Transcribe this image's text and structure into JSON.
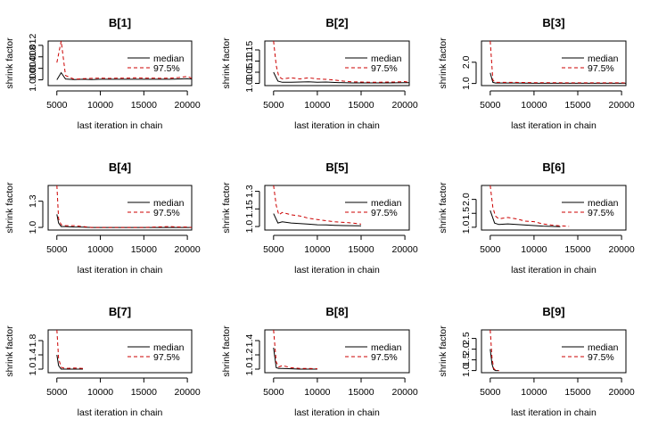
{
  "colors": {
    "median": "#000000",
    "q975": "#CC0000",
    "axis": "#000000"
  },
  "chart_data": [
    {
      "type": "line",
      "title": "B[1]",
      "xlabel": "last iteration in chain",
      "ylabel": "shrink factor",
      "xlim": [
        4000,
        20500
      ],
      "ylim": [
        0.998,
        1.0135
      ],
      "xticks": [
        {
          "v": 5000,
          "label": "5000"
        },
        {
          "v": 10000,
          "label": "10000"
        },
        {
          "v": 15000,
          "label": "15000"
        },
        {
          "v": 20000,
          "label": "20000"
        }
      ],
      "yticks": [
        {
          "v": 1.0,
          "label": "1.000"
        },
        {
          "v": 1.004,
          "label": "1.004"
        },
        {
          "v": 1.008,
          "label": "1.008"
        },
        {
          "v": 1.012,
          "label": "1.012"
        }
      ],
      "legend": [
        "median",
        "97.5%"
      ],
      "series": [
        {
          "name": "median",
          "x": [
            5000,
            5500,
            6000,
            7000,
            8000,
            9000,
            10000,
            12000,
            14000,
            16000,
            18000,
            19000,
            20000,
            20500
          ],
          "y": [
            1.0,
            1.0025,
            1.0003,
            1.0001,
            1.0002,
            1.0001,
            1.0002,
            1.0002,
            1.0002,
            1.0002,
            1.0002,
            1.0003,
            1.0004,
            1.0003
          ]
        },
        {
          "name": "97.5%",
          "x": [
            5000,
            5500,
            6000,
            7000,
            8000,
            9000,
            10000,
            11000,
            12000,
            13000,
            14000,
            15000,
            16000,
            17000,
            18000,
            19000,
            20000,
            20500
          ],
          "y": [
            1.006,
            1.0135,
            1.0015,
            1.0002,
            1.0004,
            1.0005,
            1.0006,
            1.0005,
            1.0006,
            1.0006,
            1.0007,
            1.0006,
            1.0006,
            1.0005,
            1.0006,
            1.0008,
            1.0012,
            1.0006
          ]
        }
      ]
    },
    {
      "type": "line",
      "title": "B[2]",
      "xlabel": "last iteration in chain",
      "ylabel": "shrink factor",
      "xlim": [
        4000,
        20500
      ],
      "ylim": [
        0.99,
        1.19
      ],
      "xticks": [
        {
          "v": 5000,
          "label": "5000"
        },
        {
          "v": 10000,
          "label": "10000"
        },
        {
          "v": 15000,
          "label": "15000"
        },
        {
          "v": 20000,
          "label": "20000"
        }
      ],
      "yticks": [
        {
          "v": 1.0,
          "label": "1.00"
        },
        {
          "v": 1.05,
          "label": "1.05"
        },
        {
          "v": 1.1,
          "label": "1.10"
        },
        {
          "v": 1.15,
          "label": "1.15"
        }
      ],
      "legend": [
        "median",
        "97.5%"
      ],
      "series": [
        {
          "name": "median",
          "x": [
            5000,
            5500,
            6000,
            7000,
            8000,
            9000,
            10000,
            11000,
            12000,
            13000,
            14000,
            16000,
            18000,
            20000,
            20500
          ],
          "y": [
            1.05,
            1.01,
            1.005,
            1.005,
            1.006,
            1.007,
            1.005,
            1.006,
            1.004,
            1.003,
            1.002,
            1.002,
            1.002,
            1.003,
            1.003
          ]
        },
        {
          "name": "97.5%",
          "x": [
            5000,
            5300,
            5600,
            6000,
            7000,
            8000,
            9000,
            10000,
            11000,
            12000,
            13000,
            14000,
            15000,
            16000,
            17000,
            18000,
            19000,
            20000,
            20500
          ],
          "y": [
            1.19,
            1.08,
            1.03,
            1.02,
            1.025,
            1.02,
            1.025,
            1.02,
            1.018,
            1.015,
            1.01,
            1.007,
            1.006,
            1.005,
            1.005,
            1.006,
            1.006,
            1.008,
            1.004
          ]
        }
      ]
    },
    {
      "type": "line",
      "title": "B[3]",
      "xlabel": "last iteration in chain",
      "ylabel": "shrink factor",
      "xlim": [
        4000,
        20500
      ],
      "ylim": [
        0.9,
        3.0
      ],
      "xticks": [
        {
          "v": 5000,
          "label": "5000"
        },
        {
          "v": 10000,
          "label": "10000"
        },
        {
          "v": 15000,
          "label": "15000"
        },
        {
          "v": 20000,
          "label": "20000"
        }
      ],
      "yticks": [
        {
          "v": 1.0,
          "label": "1.0"
        },
        {
          "v": 2.0,
          "label": "2.0"
        }
      ],
      "legend": [
        "median",
        "97.5%"
      ],
      "series": [
        {
          "name": "median",
          "x": [
            5000,
            5300,
            5600,
            6000,
            8000,
            10000,
            12000,
            14000,
            16000,
            18000,
            20000,
            20500
          ],
          "y": [
            1.5,
            1.05,
            1.02,
            1.02,
            1.02,
            1.01,
            1.01,
            1.01,
            1.01,
            1.01,
            1.01,
            1.01
          ]
        },
        {
          "name": "97.5%",
          "x": [
            5000,
            5300,
            5600,
            6000,
            8000,
            10000,
            12000,
            14000,
            16000,
            18000,
            20000,
            20500
          ],
          "y": [
            3.0,
            1.15,
            1.05,
            1.05,
            1.05,
            1.04,
            1.04,
            1.03,
            1.03,
            1.03,
            1.03,
            1.02
          ]
        }
      ]
    },
    {
      "type": "line",
      "title": "B[4]",
      "xlabel": "last iteration in chain",
      "ylabel": "shrink factor",
      "xlim": [
        4000,
        20500
      ],
      "ylim": [
        0.97,
        1.48
      ],
      "xticks": [
        {
          "v": 5000,
          "label": "5000"
        },
        {
          "v": 10000,
          "label": "10000"
        },
        {
          "v": 15000,
          "label": "15000"
        },
        {
          "v": 20000,
          "label": "20000"
        }
      ],
      "yticks": [
        {
          "v": 1.0,
          "label": "1.0"
        },
        {
          "v": 1.3,
          "label": "1.3"
        }
      ],
      "legend": [
        "median",
        "97.5%"
      ],
      "series": [
        {
          "name": "median",
          "x": [
            5000,
            5200,
            5500,
            6000,
            7000,
            8000,
            9000,
            10000,
            12000,
            15000,
            18000,
            20000,
            20500
          ],
          "y": [
            1.15,
            1.05,
            1.01,
            1.01,
            1.005,
            1.003,
            1.0,
            1.0,
            1.0,
            1.0,
            1.0,
            1.0,
            1.0
          ]
        },
        {
          "name": "97.5%",
          "x": [
            5000,
            5200,
            5500,
            6000,
            7000,
            8000,
            9000,
            12000,
            15000,
            18000,
            19000,
            20000,
            20500
          ],
          "y": [
            1.48,
            1.1,
            1.03,
            1.02,
            1.02,
            1.01,
            1.0,
            1.0,
            1.0,
            1.01,
            1.005,
            1.005,
            1.0
          ]
        }
      ]
    },
    {
      "type": "line",
      "title": "B[5]",
      "xlabel": "last iteration in chain",
      "ylabel": "shrink factor",
      "xlim": [
        4000,
        20500
      ],
      "ylim": [
        0.97,
        1.35
      ],
      "xticks": [
        {
          "v": 5000,
          "label": "5000"
        },
        {
          "v": 10000,
          "label": "10000"
        },
        {
          "v": 15000,
          "label": "15000"
        },
        {
          "v": 20000,
          "label": "20000"
        }
      ],
      "yticks": [
        {
          "v": 1.0,
          "label": "1.0"
        },
        {
          "v": 1.15,
          "label": "1.15"
        },
        {
          "v": 1.3,
          "label": "1.3"
        }
      ],
      "legend": [
        "median",
        "97.5%"
      ],
      "series": [
        {
          "name": "median",
          "x": [
            5000,
            5500,
            6000,
            7000,
            8000,
            9000,
            10000,
            11000,
            12000,
            13000,
            14000,
            15000
          ],
          "y": [
            1.11,
            1.03,
            1.04,
            1.03,
            1.025,
            1.02,
            1.015,
            1.013,
            1.01,
            1.008,
            1.007,
            1.006
          ]
        },
        {
          "name": "97.5%",
          "x": [
            5000,
            5300,
            5600,
            6000,
            7000,
            8000,
            9000,
            10000,
            11000,
            12000,
            13000,
            14000,
            15000
          ],
          "y": [
            1.35,
            1.18,
            1.1,
            1.12,
            1.1,
            1.09,
            1.07,
            1.06,
            1.05,
            1.04,
            1.035,
            1.03,
            1.02
          ]
        }
      ]
    },
    {
      "type": "line",
      "title": "B[6]",
      "xlabel": "last iteration in chain",
      "ylabel": "shrink factor",
      "xlim": [
        4000,
        20500
      ],
      "ylim": [
        0.9,
        2.5
      ],
      "xticks": [
        {
          "v": 5000,
          "label": "5000"
        },
        {
          "v": 10000,
          "label": "10000"
        },
        {
          "v": 15000,
          "label": "15000"
        },
        {
          "v": 20000,
          "label": "20000"
        }
      ],
      "yticks": [
        {
          "v": 1.0,
          "label": "1.0"
        },
        {
          "v": 1.5,
          "label": "1.5"
        },
        {
          "v": 2.0,
          "label": "2.0"
        }
      ],
      "legend": [
        "median",
        "97.5%"
      ],
      "series": [
        {
          "name": "median",
          "x": [
            5000,
            5500,
            6000,
            7000,
            8000,
            9000,
            10000,
            11000,
            12000,
            13000
          ],
          "y": [
            1.6,
            1.15,
            1.1,
            1.12,
            1.1,
            1.08,
            1.06,
            1.04,
            1.03,
            1.02
          ]
        },
        {
          "name": "97.5%",
          "x": [
            5000,
            5300,
            5600,
            6000,
            7000,
            8000,
            9000,
            10000,
            11000,
            12000,
            13000,
            14000
          ],
          "y": [
            2.5,
            1.7,
            1.4,
            1.3,
            1.35,
            1.3,
            1.22,
            1.2,
            1.12,
            1.08,
            1.05,
            1.03
          ]
        }
      ]
    },
    {
      "type": "line",
      "title": "B[7]",
      "xlabel": "last iteration in chain",
      "ylabel": "shrink factor",
      "xlim": [
        4000,
        20500
      ],
      "ylim": [
        0.9,
        2.1
      ],
      "xticks": [
        {
          "v": 5000,
          "label": "5000"
        },
        {
          "v": 10000,
          "label": "10000"
        },
        {
          "v": 15000,
          "label": "15000"
        },
        {
          "v": 20000,
          "label": "20000"
        }
      ],
      "yticks": [
        {
          "v": 1.0,
          "label": "1.0"
        },
        {
          "v": 1.4,
          "label": "1.4"
        },
        {
          "v": 1.8,
          "label": "1.8"
        }
      ],
      "legend": [
        "median",
        "97.5%"
      ],
      "series": [
        {
          "name": "median",
          "x": [
            5000,
            5200,
            5500,
            6000,
            7000,
            8000
          ],
          "y": [
            1.4,
            1.1,
            1.0,
            1.0,
            1.0,
            1.0
          ]
        },
        {
          "name": "97.5%",
          "x": [
            5000,
            5200,
            5500,
            6000,
            7000,
            8000
          ],
          "y": [
            2.1,
            1.3,
            1.05,
            1.02,
            1.03,
            1.02
          ]
        }
      ]
    },
    {
      "type": "line",
      "title": "B[8]",
      "xlabel": "last iteration in chain",
      "ylabel": "shrink factor",
      "xlim": [
        4000,
        20500
      ],
      "ylim": [
        0.95,
        1.55
      ],
      "xticks": [
        {
          "v": 5000,
          "label": "5000"
        },
        {
          "v": 10000,
          "label": "10000"
        },
        {
          "v": 15000,
          "label": "15000"
        },
        {
          "v": 20000,
          "label": "20000"
        }
      ],
      "yticks": [
        {
          "v": 1.0,
          "label": "1.0"
        },
        {
          "v": 1.2,
          "label": "1.2"
        },
        {
          "v": 1.4,
          "label": "1.4"
        }
      ],
      "legend": [
        "median",
        "97.5%"
      ],
      "series": [
        {
          "name": "median",
          "x": [
            5000,
            5300,
            5600,
            6000,
            8000,
            10000
          ],
          "y": [
            1.3,
            1.02,
            1.01,
            1.01,
            1.0,
            1.0
          ]
        },
        {
          "name": "97.5%",
          "x": [
            5000,
            5300,
            5600,
            6000,
            7000,
            8000,
            9000,
            10000
          ],
          "y": [
            1.55,
            1.1,
            1.03,
            1.05,
            1.02,
            1.01,
            1.01,
            1.005
          ]
        }
      ]
    },
    {
      "type": "line",
      "title": "B[9]",
      "xlabel": "last iteration in chain",
      "ylabel": "shrink factor",
      "xlim": [
        4000,
        20500
      ],
      "ylim": [
        0.9,
        2.9
      ],
      "xticks": [
        {
          "v": 5000,
          "label": "5000"
        },
        {
          "v": 10000,
          "label": "10000"
        },
        {
          "v": 15000,
          "label": "15000"
        },
        {
          "v": 20000,
          "label": "20000"
        }
      ],
      "yticks": [
        {
          "v": 1.0,
          "label": "1.0"
        },
        {
          "v": 1.5,
          "label": "1.5"
        },
        {
          "v": 2.0,
          "label": "2.0"
        },
        {
          "v": 2.5,
          "label": "2.5"
        }
      ],
      "legend": [
        "median",
        "97.5%"
      ],
      "series": [
        {
          "name": "median",
          "x": [
            5000,
            5200,
            5400,
            5600,
            6000
          ],
          "y": [
            2.0,
            1.3,
            1.05,
            1.0,
            1.0
          ]
        },
        {
          "name": "97.5%",
          "x": [
            5000,
            5200,
            5400,
            5600,
            6000
          ],
          "y": [
            2.9,
            1.6,
            1.1,
            1.02,
            1.0
          ]
        }
      ]
    }
  ]
}
